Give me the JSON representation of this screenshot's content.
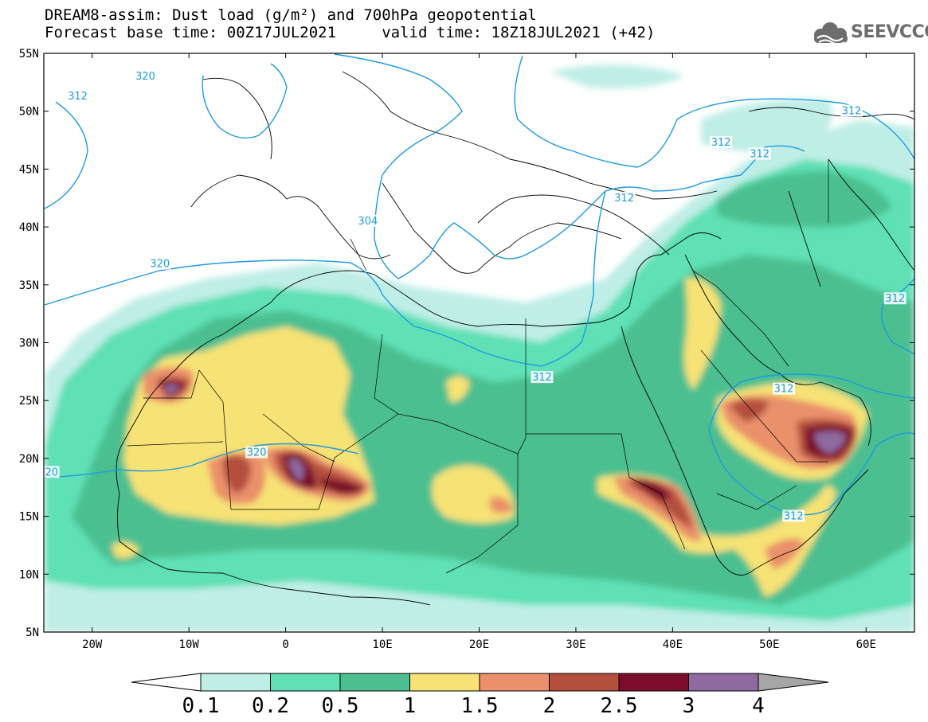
{
  "title_line1": "DREAM8-assim: Dust load (g/m²) and 700hPa geopotential",
  "title_line2": "Forecast base time: 00Z17JUL2021     valid time: 18Z18JUL2021 (+42)",
  "logo_text": "SEEVCCC",
  "map_extent": {
    "lon": [
      -25,
      65
    ],
    "lat": [
      5,
      55
    ]
  },
  "lat_ticks": [
    {
      "value": 55,
      "label": "55N"
    },
    {
      "value": 50,
      "label": "50N"
    },
    {
      "value": 45,
      "label": "45N"
    },
    {
      "value": 40,
      "label": "40N"
    },
    {
      "value": 35,
      "label": "35N"
    },
    {
      "value": 30,
      "label": "30N"
    },
    {
      "value": 25,
      "label": "25N"
    },
    {
      "value": 20,
      "label": "20N"
    },
    {
      "value": 15,
      "label": "15N"
    },
    {
      "value": 10,
      "label": "10N"
    },
    {
      "value": 5,
      "label": "5N"
    }
  ],
  "lon_ticks": [
    {
      "value": -20,
      "label": "20W"
    },
    {
      "value": -10,
      "label": "10W"
    },
    {
      "value": 0,
      "label": "0"
    },
    {
      "value": 10,
      "label": "10E"
    },
    {
      "value": 20,
      "label": "20E"
    },
    {
      "value": 30,
      "label": "30E"
    },
    {
      "value": 40,
      "label": "40E"
    },
    {
      "value": 50,
      "label": "50E"
    },
    {
      "value": 60,
      "label": "60E"
    }
  ],
  "colorbar": {
    "colors": [
      "#bfeee6",
      "#5fe0b5",
      "#4cbf90",
      "#f6e275",
      "#ea906a",
      "#b4503e",
      "#7c0c2c",
      "#8e6aa0"
    ],
    "under_color": "#ffffff",
    "over_color": "#a6a6a6",
    "labels": [
      "0.1",
      "0.2",
      "0.5",
      "1",
      "1.5",
      "2",
      "2.5",
      "3",
      "4"
    ]
  },
  "contour_labels": [
    {
      "text": "312",
      "lon": -21.5,
      "lat": 51.3
    },
    {
      "text": "320",
      "lon": -14.5,
      "lat": 53.0
    },
    {
      "text": "312",
      "lon": 58.5,
      "lat": 50.0
    },
    {
      "text": "312",
      "lon": 49.0,
      "lat": 46.3
    },
    {
      "text": "312",
      "lon": 45.0,
      "lat": 47.3
    },
    {
      "text": "312",
      "lon": 35.0,
      "lat": 42.5
    },
    {
      "text": "304",
      "lon": 8.5,
      "lat": 40.5
    },
    {
      "text": "320",
      "lon": -13.0,
      "lat": 36.8
    },
    {
      "text": "312",
      "lon": 63.0,
      "lat": 33.8
    },
    {
      "text": "312",
      "lon": 26.5,
      "lat": 27.0
    },
    {
      "text": "312",
      "lon": 51.5,
      "lat": 26.0
    },
    {
      "text": "320",
      "lon": -3.0,
      "lat": 20.5
    },
    {
      "text": "20",
      "lon": -24.2,
      "lat": 18.8
    },
    {
      "text": "312",
      "lon": 52.5,
      "lat": 15.0
    }
  ]
}
